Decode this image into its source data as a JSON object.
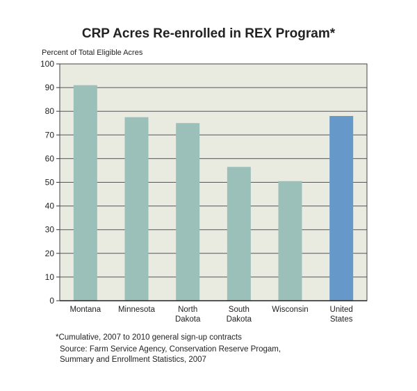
{
  "chart_data": {
    "type": "bar",
    "title": "CRP Acres Re-enrolled in REX Program*",
    "ylabel": "Percent of Total Eligible Acres",
    "xlabel": "",
    "ylim": [
      0,
      100
    ],
    "yticks": [
      0,
      10,
      20,
      30,
      40,
      50,
      60,
      70,
      80,
      90,
      100
    ],
    "grid": true,
    "categories": [
      [
        "Montana"
      ],
      [
        "Minnesota"
      ],
      [
        "North",
        "Dakota"
      ],
      [
        "South",
        "Dakota"
      ],
      [
        "Wisconsin"
      ],
      [
        "United",
        "States"
      ]
    ],
    "values": [
      91,
      77.5,
      75,
      56.5,
      50.5,
      78
    ],
    "colors": [
      "#9bbfb9",
      "#9bbfb9",
      "#9bbfb9",
      "#9bbfb9",
      "#9bbfb9",
      "#6699c9"
    ],
    "plot_background": "#e9eae0"
  },
  "footnote": "*Cumulative, 2007 to 2010 general sign-up contracts",
  "source": [
    "Source: Farm Service Agency, Conservation Reserve Progam,",
    "Summary and Enrollment Statistics, 2007"
  ]
}
